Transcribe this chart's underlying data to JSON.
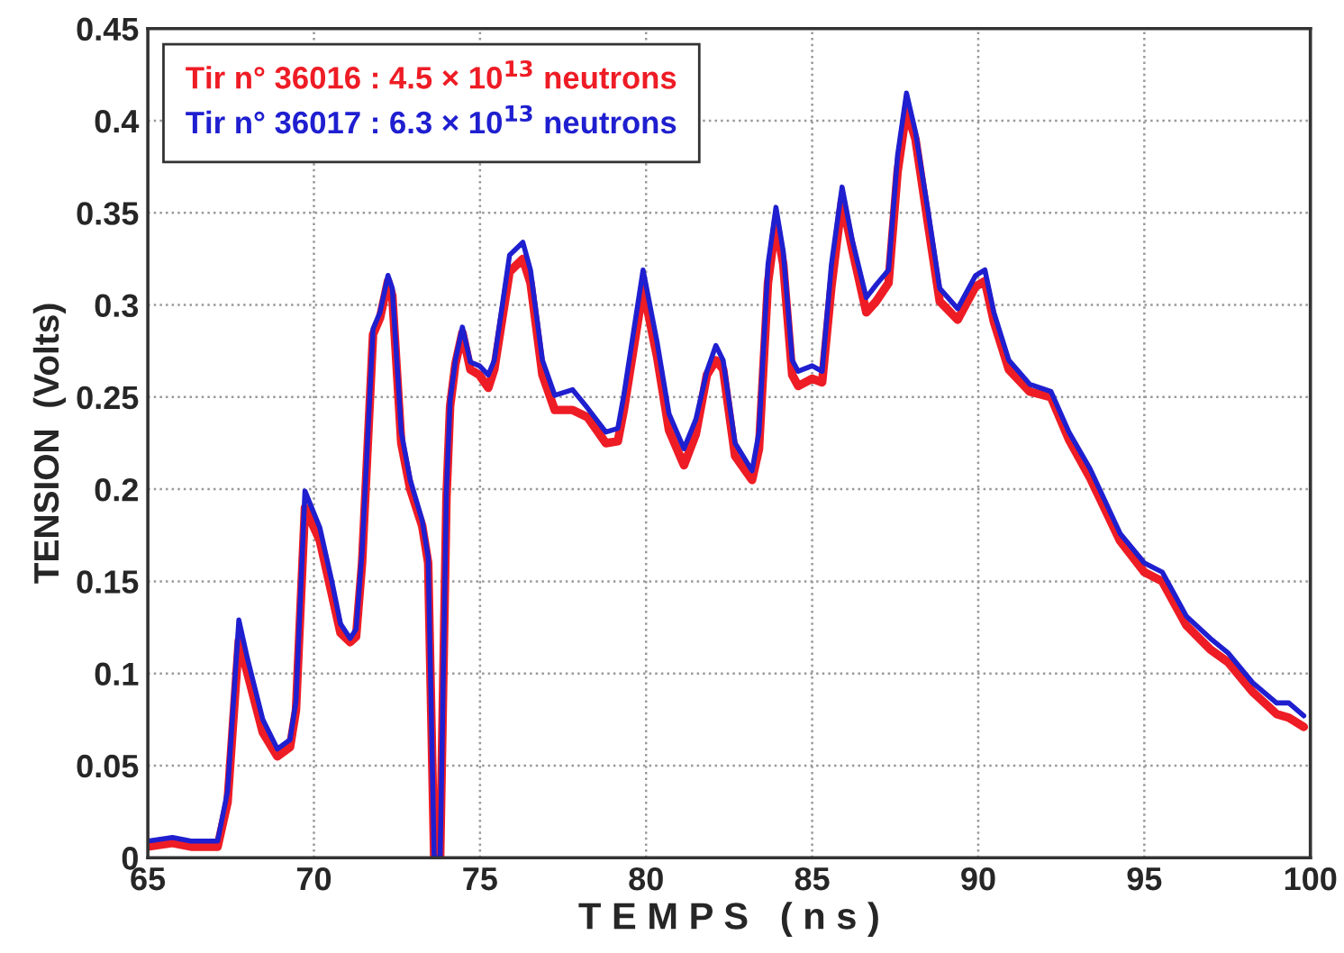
{
  "chart_data": {
    "type": "line",
    "xlabel": "T E M P S   ( n s )",
    "ylabel": "TENSION  (Volts)",
    "xlim": [
      65,
      100
    ],
    "xticks": [
      65,
      70,
      75,
      80,
      85,
      90,
      95,
      100
    ],
    "ylim": [
      0,
      0.45
    ],
    "yticks": [
      0,
      0.05,
      0.1,
      0.15,
      0.2,
      0.25,
      0.3,
      0.35,
      0.4,
      0.45
    ],
    "grid": true,
    "legend": "top left",
    "marker": "none",
    "line_style": "solid",
    "series": [
      {
        "name": "Tir n° 36016 : 4.5 × 10$^{13}$ neutrons",
        "color": "#ee1c25",
        "x": [
          65,
          65.74,
          66.3,
          67.1,
          67.4,
          67.74,
          68.0,
          68.46,
          68.9,
          69.28,
          69.46,
          69.73,
          70.18,
          70.54,
          70.8,
          71.09,
          71.27,
          71.45,
          71.78,
          71.99,
          72.23,
          72.36,
          72.63,
          72.9,
          73.26,
          73.44,
          73.62,
          73.8,
          73.99,
          74.1,
          74.26,
          74.47,
          74.71,
          74.98,
          75.25,
          75.43,
          75.89,
          76.29,
          76.52,
          76.88,
          77.25,
          77.79,
          78.24,
          78.79,
          79.15,
          79.33,
          79.91,
          80.33,
          80.69,
          81.14,
          81.5,
          81.83,
          82.1,
          82.32,
          82.68,
          83.19,
          83.4,
          83.67,
          83.91,
          84.13,
          84.4,
          84.58,
          85.0,
          85.3,
          85.58,
          85.9,
          86.21,
          86.63,
          86.93,
          87.3,
          87.57,
          87.84,
          88.11,
          88.48,
          88.84,
          89.38,
          89.92,
          90.2,
          90.47,
          90.92,
          91.55,
          92.19,
          92.73,
          93.37,
          94.27,
          95.0,
          95.54,
          96.27,
          96.99,
          97.53,
          98.26,
          98.98,
          99.35,
          99.8
        ],
        "values": [
          0.006,
          0.008,
          0.006,
          0.006,
          0.03,
          0.118,
          0.1,
          0.068,
          0.055,
          0.06,
          0.08,
          0.19,
          0.172,
          0.143,
          0.122,
          0.117,
          0.12,
          0.16,
          0.284,
          0.293,
          0.313,
          0.305,
          0.225,
          0.2,
          0.18,
          0.16,
          0,
          0,
          0.195,
          0.245,
          0.268,
          0.285,
          0.265,
          0.262,
          0.255,
          0.265,
          0.318,
          0.325,
          0.312,
          0.262,
          0.243,
          0.243,
          0.239,
          0.225,
          0.226,
          0.243,
          0.309,
          0.272,
          0.232,
          0.213,
          0.23,
          0.262,
          0.27,
          0.265,
          0.218,
          0.205,
          0.222,
          0.312,
          0.345,
          0.322,
          0.262,
          0.256,
          0.26,
          0.258,
          0.31,
          0.357,
          0.33,
          0.296,
          0.302,
          0.312,
          0.372,
          0.406,
          0.39,
          0.345,
          0.302,
          0.292,
          0.31,
          0.313,
          0.291,
          0.265,
          0.253,
          0.25,
          0.227,
          0.206,
          0.172,
          0.155,
          0.15,
          0.126,
          0.113,
          0.106,
          0.09,
          0.078,
          0.076,
          0.071
        ]
      },
      {
        "name": "Tir n° 36017 : 6.3 × 10$^{13}$ neutrons",
        "color": "#1f1fd0",
        "x": [
          65,
          65.74,
          66.3,
          67.1,
          67.4,
          67.74,
          68.0,
          68.46,
          68.9,
          69.28,
          69.46,
          69.73,
          70.18,
          70.54,
          70.8,
          71.09,
          71.27,
          71.45,
          71.78,
          71.99,
          72.23,
          72.36,
          72.63,
          72.9,
          73.26,
          73.44,
          73.62,
          73.8,
          73.99,
          74.1,
          74.26,
          74.47,
          74.71,
          74.98,
          75.25,
          75.43,
          75.89,
          76.29,
          76.52,
          76.88,
          77.25,
          77.79,
          78.24,
          78.79,
          79.15,
          79.33,
          79.91,
          80.33,
          80.69,
          81.14,
          81.5,
          81.83,
          82.1,
          82.32,
          82.68,
          83.19,
          83.4,
          83.67,
          83.91,
          84.13,
          84.4,
          84.58,
          85.0,
          85.3,
          85.58,
          85.9,
          86.21,
          86.63,
          86.93,
          87.3,
          87.57,
          87.84,
          88.11,
          88.48,
          88.84,
          89.38,
          89.92,
          90.2,
          90.47,
          90.92,
          91.55,
          92.19,
          92.73,
          93.37,
          94.27,
          95.0,
          95.54,
          96.27,
          96.99,
          97.53,
          98.26,
          98.98,
          99.35,
          99.8
        ],
        "values": [
          0.009,
          0.011,
          0.009,
          0.009,
          0.036,
          0.129,
          0.108,
          0.075,
          0.059,
          0.064,
          0.085,
          0.199,
          0.179,
          0.15,
          0.127,
          0.119,
          0.124,
          0.166,
          0.287,
          0.296,
          0.316,
          0.309,
          0.231,
          0.205,
          0.183,
          0.163,
          0,
          0,
          0.199,
          0.248,
          0.27,
          0.288,
          0.269,
          0.267,
          0.262,
          0.27,
          0.327,
          0.334,
          0.319,
          0.27,
          0.251,
          0.254,
          0.244,
          0.231,
          0.233,
          0.251,
          0.319,
          0.28,
          0.241,
          0.222,
          0.238,
          0.264,
          0.278,
          0.27,
          0.225,
          0.21,
          0.231,
          0.322,
          0.353,
          0.329,
          0.27,
          0.264,
          0.267,
          0.264,
          0.322,
          0.364,
          0.335,
          0.304,
          0.311,
          0.319,
          0.381,
          0.415,
          0.394,
          0.352,
          0.309,
          0.298,
          0.316,
          0.319,
          0.296,
          0.27,
          0.257,
          0.253,
          0.231,
          0.211,
          0.176,
          0.16,
          0.155,
          0.131,
          0.119,
          0.111,
          0.095,
          0.084,
          0.084,
          0.077
        ]
      }
    ]
  }
}
